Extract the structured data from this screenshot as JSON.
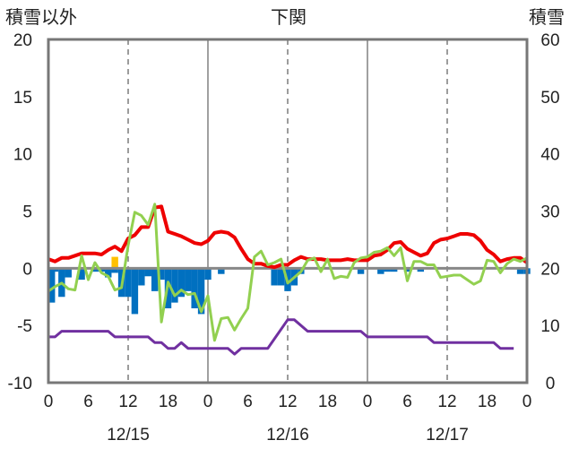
{
  "chart_data": {
    "type": "line",
    "title": "下関",
    "left_axis_label": "積雪以外",
    "right_axis_label": "積雪",
    "left_ylim": [
      -10,
      20
    ],
    "left_ticks": [
      20,
      15,
      10,
      5,
      0,
      -5,
      -10
    ],
    "right_ylim": [
      0,
      60
    ],
    "right_ticks": [
      60,
      50,
      40,
      30,
      20,
      10,
      0
    ],
    "xlim_hours": [
      0,
      72
    ],
    "x_tick_hours": [
      0,
      6,
      12,
      18,
      24,
      30,
      36,
      42,
      48,
      54,
      60,
      66,
      72
    ],
    "x_tick_labels": [
      "0",
      "6",
      "12",
      "18",
      "0",
      "6",
      "12",
      "18",
      "0",
      "6",
      "12",
      "18",
      "0"
    ],
    "date_labels": [
      {
        "label": "12/15",
        "at_hour": 12
      },
      {
        "label": "12/16",
        "at_hour": 36
      },
      {
        "label": "12/17",
        "at_hour": 60
      }
    ],
    "day_boundaries_hours": [
      24,
      48
    ],
    "dashed_grid_hours": [
      12,
      36,
      60
    ],
    "grid": true,
    "series": [
      {
        "type": "line",
        "color": "#ee0000",
        "axis": "left",
        "points": [
          [
            0,
            0.8
          ],
          [
            1,
            0.6
          ],
          [
            2,
            0.9
          ],
          [
            3,
            0.9
          ],
          [
            4,
            1.1
          ],
          [
            5,
            1.3
          ],
          [
            6,
            1.3
          ],
          [
            7,
            1.3
          ],
          [
            8,
            1.2
          ],
          [
            9,
            1.6
          ],
          [
            10,
            1.9
          ],
          [
            11,
            1.5
          ],
          [
            12,
            2.6
          ],
          [
            13,
            2.9
          ],
          [
            14,
            3.6
          ],
          [
            15,
            3.6
          ],
          [
            16,
            5.3
          ],
          [
            17,
            5.4
          ],
          [
            18,
            3.2
          ],
          [
            19,
            3.0
          ],
          [
            20,
            2.8
          ],
          [
            21,
            2.5
          ],
          [
            22,
            2.2
          ],
          [
            23,
            2.1
          ],
          [
            24,
            2.4
          ],
          [
            25,
            3.1
          ],
          [
            26,
            3.2
          ],
          [
            27,
            3.1
          ],
          [
            28,
            2.7
          ],
          [
            29,
            1.7
          ],
          [
            30,
            0.8
          ],
          [
            31,
            0.4
          ],
          [
            32,
            0.4
          ],
          [
            33,
            0.2
          ],
          [
            34,
            0.1
          ],
          [
            35,
            0.3
          ],
          [
            36,
            0.3
          ],
          [
            37,
            0.7
          ],
          [
            38,
            1.0
          ],
          [
            39,
            0.8
          ],
          [
            40,
            0.8
          ],
          [
            41,
            0.8
          ],
          [
            42,
            0.7
          ],
          [
            43,
            0.7
          ],
          [
            44,
            0.7
          ],
          [
            45,
            0.8
          ],
          [
            46,
            0.7
          ],
          [
            47,
            0.7
          ],
          [
            48,
            0.7
          ],
          [
            49,
            1.1
          ],
          [
            50,
            1.2
          ],
          [
            51,
            1.6
          ],
          [
            52,
            2.2
          ],
          [
            53,
            2.3
          ],
          [
            54,
            1.7
          ],
          [
            55,
            1.4
          ],
          [
            56,
            1.1
          ],
          [
            57,
            1.3
          ],
          [
            58,
            2.2
          ],
          [
            59,
            2.5
          ],
          [
            60,
            2.6
          ],
          [
            61,
            2.8
          ],
          [
            62,
            3.0
          ],
          [
            63,
            3.0
          ],
          [
            64,
            2.9
          ],
          [
            65,
            2.4
          ],
          [
            66,
            1.6
          ],
          [
            67,
            1.2
          ],
          [
            68,
            0.6
          ],
          [
            69,
            0.8
          ],
          [
            70,
            0.9
          ],
          [
            71,
            0.9
          ],
          [
            72,
            0.5
          ]
        ]
      },
      {
        "type": "line",
        "color": "#92d050",
        "axis": "left",
        "points": [
          [
            0,
            -2.0
          ],
          [
            1,
            -1.6
          ],
          [
            2,
            -1.3
          ],
          [
            3,
            -1.8
          ],
          [
            4,
            -1.9
          ],
          [
            5,
            1.1
          ],
          [
            6,
            -1.0
          ],
          [
            7,
            0.5
          ],
          [
            8,
            -0.4
          ],
          [
            9,
            -0.7
          ],
          [
            10,
            -1.9
          ],
          [
            11,
            -1.7
          ],
          [
            12,
            2.0
          ],
          [
            13,
            4.9
          ],
          [
            14,
            4.6
          ],
          [
            15,
            3.8
          ],
          [
            16,
            5.6
          ],
          [
            17,
            -4.7
          ],
          [
            18,
            -1.2
          ],
          [
            19,
            -2.4
          ],
          [
            20,
            -1.9
          ],
          [
            21,
            -2.3
          ],
          [
            22,
            -2.2
          ],
          [
            23,
            -3.8
          ],
          [
            24,
            -2.4
          ],
          [
            25,
            -6.3
          ],
          [
            26,
            -4.4
          ],
          [
            27,
            -4.3
          ],
          [
            28,
            -5.4
          ],
          [
            29,
            -4.4
          ],
          [
            30,
            -3.5
          ],
          [
            31,
            1.0
          ],
          [
            32,
            1.5
          ],
          [
            33,
            0.3
          ],
          [
            34,
            0.5
          ],
          [
            35,
            0.8
          ],
          [
            36,
            -1.3
          ],
          [
            37,
            -0.8
          ],
          [
            38,
            -0.3
          ],
          [
            39,
            0.7
          ],
          [
            40,
            0.9
          ],
          [
            41,
            -0.3
          ],
          [
            42,
            0.8
          ],
          [
            43,
            -0.9
          ],
          [
            44,
            -0.7
          ],
          [
            45,
            -0.8
          ],
          [
            46,
            0.5
          ],
          [
            47,
            0.9
          ],
          [
            48,
            1.0
          ],
          [
            49,
            1.4
          ],
          [
            50,
            1.5
          ],
          [
            51,
            1.8
          ],
          [
            52,
            1.1
          ],
          [
            53,
            1.8
          ],
          [
            54,
            -1.1
          ],
          [
            55,
            0.6
          ],
          [
            56,
            0.6
          ],
          [
            57,
            0.3
          ],
          [
            58,
            0.3
          ],
          [
            59,
            -0.8
          ],
          [
            60,
            -0.7
          ],
          [
            61,
            -0.6
          ],
          [
            62,
            -0.6
          ],
          [
            63,
            -1.0
          ],
          [
            64,
            -1.4
          ],
          [
            65,
            -1.1
          ],
          [
            66,
            0.7
          ],
          [
            67,
            0.6
          ],
          [
            68,
            -0.4
          ],
          [
            69,
            0.4
          ],
          [
            70,
            0.8
          ],
          [
            71,
            0.6
          ],
          [
            72,
            0.9
          ]
        ]
      },
      {
        "type": "line",
        "color": "#7030a0",
        "axis": "left",
        "points": [
          [
            0,
            -6.0
          ],
          [
            1,
            -6.0
          ],
          [
            2,
            -5.5
          ],
          [
            3,
            -5.5
          ],
          [
            9,
            -5.5
          ],
          [
            10,
            -6.0
          ],
          [
            15,
            -6.0
          ],
          [
            16,
            -6.5
          ],
          [
            17,
            -6.5
          ],
          [
            18,
            -7.0
          ],
          [
            19,
            -7.0
          ],
          [
            20,
            -6.5
          ],
          [
            21,
            -7.0
          ],
          [
            27,
            -7.0
          ],
          [
            28,
            -7.5
          ],
          [
            29,
            -7.0
          ],
          [
            33,
            -7.0
          ],
          [
            36,
            -4.5
          ],
          [
            37,
            -4.5
          ],
          [
            39,
            -5.5
          ],
          [
            47,
            -5.5
          ],
          [
            48,
            -6.0
          ],
          [
            57,
            -6.0
          ],
          [
            58,
            -6.5
          ],
          [
            67,
            -6.5
          ],
          [
            68,
            -7.0
          ],
          [
            70,
            -7.0
          ]
        ]
      },
      {
        "type": "bar",
        "color": "#0070c0",
        "axis": "left",
        "points": [
          [
            0,
            -3.0
          ],
          [
            1,
            -0.3
          ],
          [
            2,
            -2.5
          ],
          [
            3,
            -0.8
          ],
          [
            4,
            0.0
          ],
          [
            5,
            -1.0
          ],
          [
            6,
            0.0
          ],
          [
            7,
            -0.3
          ],
          [
            8,
            -0.3
          ],
          [
            9,
            -0.8
          ],
          [
            10,
            -0.4
          ],
          [
            11,
            -2.5
          ],
          [
            12,
            -2.5
          ],
          [
            13,
            -4.0
          ],
          [
            14,
            -1.5
          ],
          [
            15,
            -0.7
          ],
          [
            16,
            -2.0
          ],
          [
            17,
            -1.0
          ],
          [
            18,
            -3.5
          ],
          [
            19,
            -3.0
          ],
          [
            20,
            -2.5
          ],
          [
            21,
            -2.0
          ],
          [
            22,
            -3.5
          ],
          [
            23,
            -4.0
          ],
          [
            24,
            -1.0
          ],
          [
            26,
            -0.5
          ],
          [
            34,
            -1.5
          ],
          [
            35,
            -1.5
          ],
          [
            36,
            -2.0
          ],
          [
            37,
            -1.5
          ],
          [
            38,
            -0.5
          ],
          [
            47,
            -0.5
          ],
          [
            50,
            -0.5
          ],
          [
            51,
            -0.3
          ],
          [
            52,
            -0.3
          ],
          [
            54,
            -0.3
          ],
          [
            56,
            -0.3
          ],
          [
            71,
            -0.5
          ],
          [
            72,
            -0.5
          ]
        ]
      },
      {
        "type": "bar",
        "color": "#ffc000",
        "axis": "left",
        "points": [
          [
            10,
            1.0
          ]
        ]
      }
    ]
  }
}
